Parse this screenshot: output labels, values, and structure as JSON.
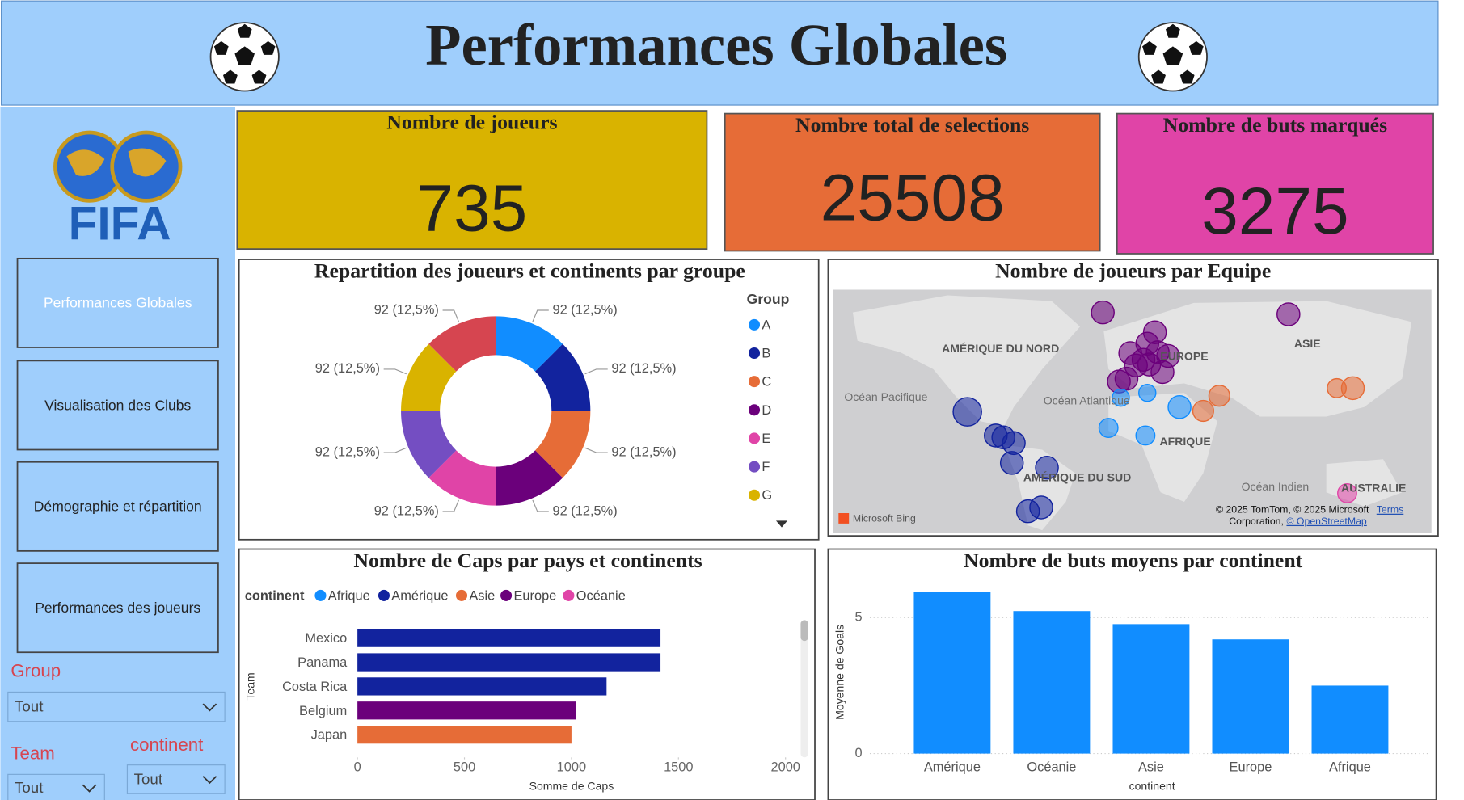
{
  "header": {
    "title": "Performances Globales"
  },
  "logo": {
    "text": "FIFA"
  },
  "nav": [
    "Performances Globales",
    "Visualisation des Clubs",
    "Démographie et répartition",
    "Performances des joueurs"
  ],
  "filters": [
    {
      "label": "Group",
      "value": "Tout"
    },
    {
      "label": "Team",
      "value": "Tout"
    },
    {
      "label": "continent",
      "value": "Tout"
    }
  ],
  "kpis": [
    {
      "label": "Nombre de joueurs",
      "value": 735,
      "color": "#d9b300"
    },
    {
      "label": "Nombre total de selections",
      "value": 25508,
      "color": "#e66c37"
    },
    {
      "label": "Nombre de buts marqués",
      "value": 3275,
      "color": "#e044a7"
    }
  ],
  "chart_data": [
    {
      "type": "pie",
      "title": "Repartition des joueurs et continents par groupe",
      "legend_title": "Group",
      "categories": [
        "A",
        "B",
        "C",
        "D",
        "E",
        "F",
        "G",
        null
      ],
      "values": [
        92,
        92,
        92,
        92,
        92,
        92,
        92,
        92
      ],
      "value_labels": [
        "92 (12,5%)",
        "92 (12,5%)",
        "92 (12,5%)",
        "92 (12,5%)",
        "92 (12,5%)",
        "92 (12,5%)",
        "92 (12,5%)",
        "92 (12,5%)"
      ],
      "colors": [
        "#118dff",
        "#12239e",
        "#e66c37",
        "#6b007b",
        "#e044a7",
        "#744ec2",
        "#d9b300",
        "#d64550"
      ]
    },
    {
      "type": "map",
      "title": "Nombre de joueurs par Equipe",
      "labels": [
        "AMÉRIQUE DU NORD",
        "Océan Pacifique",
        "Océan Atlantique",
        "EUROPE",
        "ASIE",
        "AFRIQUE",
        "AMÉRIQUE DU SUD",
        "Océan Indien",
        "AUSTRALIE"
      ],
      "attribution": [
        "Microsoft Bing",
        "© 2025 TomTom, © 2025 Microsoft",
        "Terms",
        "Corporation,",
        "© OpenStreetMap"
      ]
    },
    {
      "type": "hbar",
      "title": "Nombre de Caps par pays et continents",
      "legend_title": "continent",
      "x_label": "Somme de Caps",
      "y_label": "Team",
      "categories": [
        "Mexico",
        "Panama",
        "Costa Rica",
        "Belgium",
        "Japan"
      ],
      "series": [
        {
          "name": "Afrique",
          "color": "#118dff",
          "values": [
            null,
            null,
            null,
            null,
            null
          ]
        },
        {
          "name": "Amérique",
          "color": "#12239e",
          "values": [
            1416,
            1416,
            1164,
            null,
            null
          ]
        },
        {
          "name": "Asie",
          "color": "#e66c37",
          "values": [
            null,
            null,
            null,
            null,
            1000
          ]
        },
        {
          "name": "Europe",
          "color": "#6b007b",
          "values": [
            null,
            null,
            null,
            1022,
            null
          ]
        },
        {
          "name": "Océanie",
          "color": "#e044a7",
          "values": [
            null,
            null,
            null,
            null,
            null
          ]
        }
      ],
      "xlim": [
        0,
        2000
      ],
      "xticks": [
        0,
        500,
        1000,
        1500,
        2000
      ]
    },
    {
      "type": "bar",
      "title": "Nombre de buts moyens par continent",
      "x_label": "continent",
      "y_label": "Moyenne de Goals",
      "categories": [
        "Amérique",
        "Océanie",
        "Asie",
        "Europe",
        "Afrique"
      ],
      "values": [
        5.94,
        5.24,
        4.76,
        4.2,
        2.5
      ],
      "color": "#118dff",
      "ylim": [
        0,
        6.3
      ],
      "yticks": [
        0,
        5
      ],
      "grid": true
    }
  ]
}
